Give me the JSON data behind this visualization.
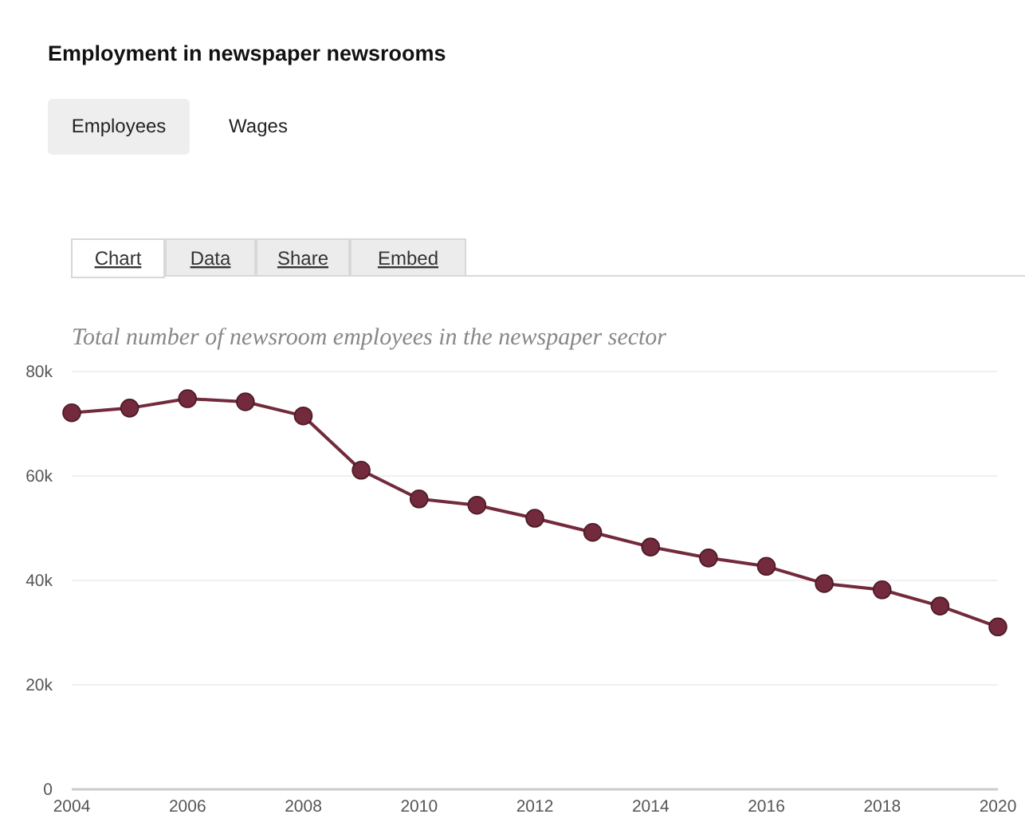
{
  "chart_data": {
    "type": "line",
    "title": "Employment in newspaper newsrooms",
    "subtitle": "Total number of newsroom employees in the newspaper sector",
    "annotations": [
      "Employees",
      "Wages",
      "Chart",
      "Data",
      "Share",
      "Embed"
    ],
    "x": [
      2004,
      2005,
      2006,
      2007,
      2008,
      2009,
      2010,
      2011,
      2012,
      2013,
      2014,
      2015,
      2016,
      2017,
      2018,
      2019,
      2020
    ],
    "series": [
      {
        "color": "#722a3c",
        "values": [
          72100,
          73000,
          74800,
          74200,
          71500,
          61100,
          55600,
          54400,
          51900,
          49200,
          46400,
          44300,
          42700,
          39400,
          38200,
          35100,
          31100
        ]
      }
    ],
    "xlim": [
      2004,
      2020
    ],
    "xticks": [
      2004,
      2006,
      2008,
      2010,
      2012,
      2014,
      2016,
      2018,
      2020
    ],
    "ylim": [
      0,
      80000
    ],
    "yticks": [
      {
        "value": 0,
        "label": "0"
      },
      {
        "value": 20000,
        "label": "20k"
      },
      {
        "value": 40000,
        "label": "40k"
      },
      {
        "value": 60000,
        "label": "60k"
      },
      {
        "value": 80000,
        "label": "80k"
      }
    ],
    "grid": "y",
    "marker": "circle",
    "line_style": "solid"
  }
}
